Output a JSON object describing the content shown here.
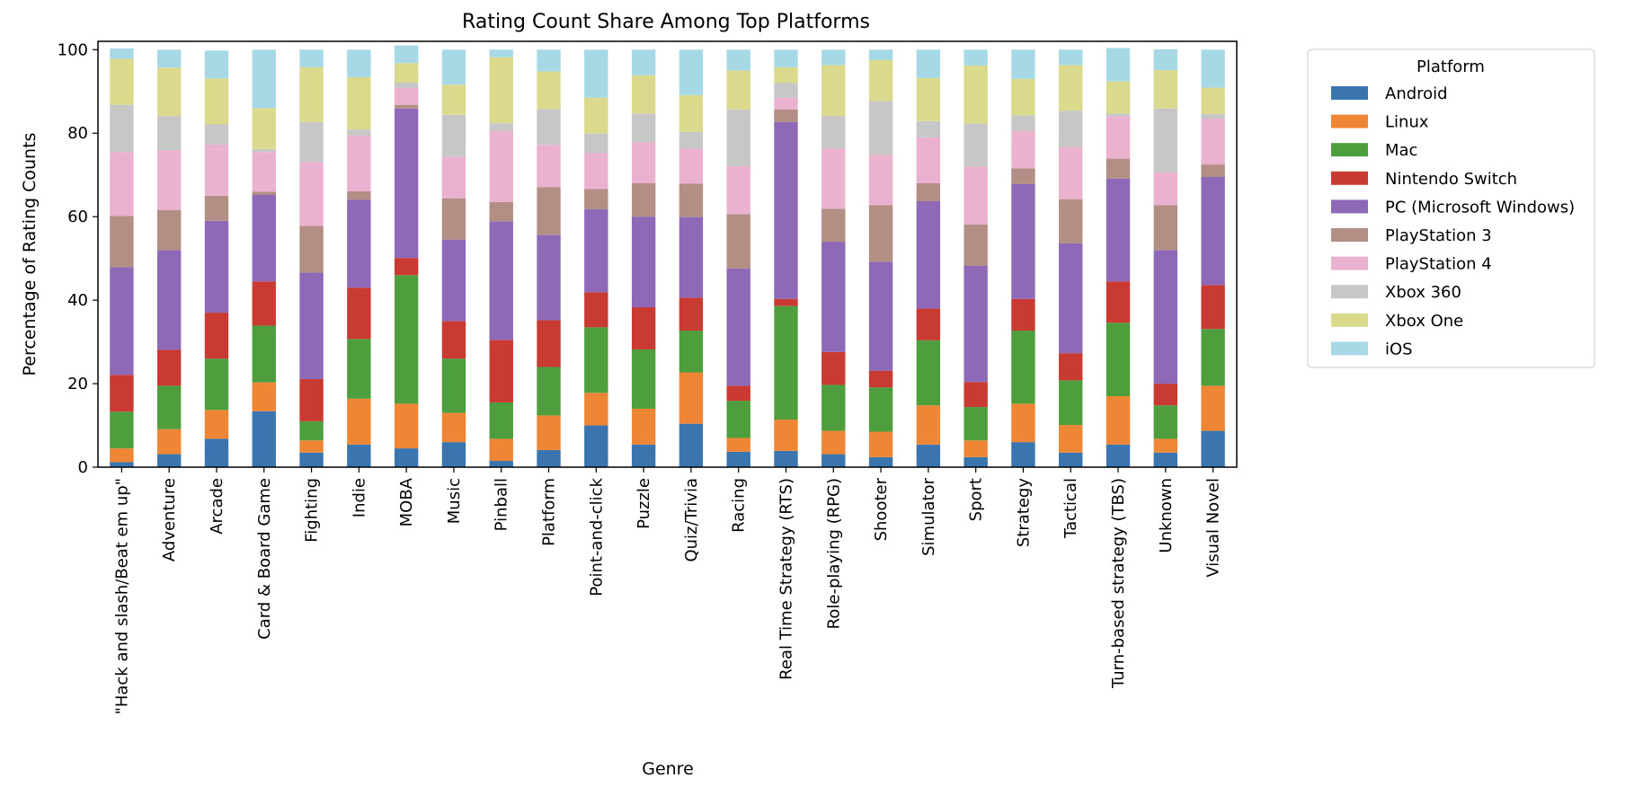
{
  "chart_data": {
    "type": "bar",
    "stacked": true,
    "title": "Rating Count Share Among Top Platforms",
    "xlabel": "Genre",
    "ylabel": "Percentage of Rating Counts",
    "ylim": [
      0,
      100
    ],
    "yticks": [
      0,
      20,
      40,
      60,
      80,
      100
    ],
    "grid": false,
    "legend": {
      "title": "Platform",
      "placement": "upper-right-outside"
    },
    "categories": [
      "\"Hack and slash/Beat em up\"",
      "Adventure",
      "Arcade",
      "Card & Board Game",
      "Fighting",
      "Indie",
      "MOBA",
      "Music",
      "Pinball",
      "Platform",
      "Point-and-click",
      "Puzzle",
      "Quiz/Trivia",
      "Racing",
      "Real Time Strategy (RTS)",
      "Role-playing (RPG)",
      "Shooter",
      "Simulator",
      "Sport",
      "Strategy",
      "Tactical",
      "Turn-based strategy (TBS)",
      "Unknown",
      "Visual Novel"
    ],
    "series": [
      {
        "name": "Android",
        "color": "#3a75b0",
        "values": [
          1.2,
          3.1,
          6.8,
          13.4,
          3.5,
          5.4,
          4.5,
          6.0,
          1.5,
          4.1,
          10.0,
          5.4,
          10.4,
          3.7,
          3.9,
          3.1,
          2.4,
          5.4,
          2.4,
          6.0,
          3.5,
          5.4,
          3.5,
          8.7
        ]
      },
      {
        "name": "Linux",
        "color": "#ef8636",
        "values": [
          3.3,
          6.0,
          6.9,
          6.9,
          2.9,
          11.0,
          10.7,
          7.0,
          5.3,
          8.3,
          7.8,
          8.6,
          12.3,
          3.3,
          7.5,
          5.6,
          6.1,
          9.4,
          4.0,
          9.2,
          6.6,
          11.6,
          3.3,
          10.8
        ]
      },
      {
        "name": "Mac",
        "color": "#4e9e3e",
        "values": [
          8.8,
          10.4,
          12.3,
          13.6,
          4.6,
          14.3,
          30.8,
          13.0,
          8.7,
          11.6,
          15.7,
          14.2,
          10.0,
          8.9,
          27.2,
          11.0,
          10.6,
          15.6,
          8.0,
          17.5,
          10.7,
          17.6,
          8.0,
          13.6
        ]
      },
      {
        "name": "Nintendo Switch",
        "color": "#c83a32",
        "values": [
          8.8,
          8.6,
          11.0,
          10.6,
          10.1,
          12.3,
          4.1,
          9.0,
          15.0,
          11.2,
          8.4,
          10.1,
          7.9,
          3.6,
          1.7,
          7.9,
          4.0,
          7.6,
          6.0,
          7.6,
          6.5,
          9.9,
          5.2,
          10.5
        ]
      },
      {
        "name": "PC (Microsoft Windows)",
        "color": "#8d69b8",
        "values": [
          25.8,
          23.9,
          22.0,
          20.7,
          25.5,
          21.1,
          35.8,
          19.5,
          28.4,
          20.4,
          19.9,
          21.7,
          19.3,
          28.1,
          42.4,
          26.4,
          26.1,
          25.7,
          27.8,
          27.5,
          26.3,
          24.6,
          32.0,
          25.9
        ]
      },
      {
        "name": "PlayStation 3",
        "color": "#b38e85",
        "values": [
          12.3,
          9.6,
          6.0,
          0.8,
          11.2,
          2.0,
          0.9,
          9.9,
          4.6,
          11.5,
          4.8,
          8.0,
          8.0,
          13.0,
          3.0,
          7.9,
          13.6,
          4.3,
          9.9,
          3.8,
          10.6,
          4.8,
          10.8,
          3.0
        ]
      },
      {
        "name": "PlayStation 4",
        "color": "#eab2cf",
        "values": [
          15.3,
          14.3,
          12.3,
          9.5,
          15.3,
          13.4,
          4.1,
          10.0,
          17.1,
          10.1,
          8.6,
          9.8,
          8.4,
          11.5,
          2.8,
          14.4,
          12.0,
          11.0,
          13.9,
          8.9,
          12.5,
          10.1,
          7.8,
          11.0
        ]
      },
      {
        "name": "Xbox 360",
        "color": "#c7c7c7",
        "values": [
          11.3,
          8.2,
          4.8,
          0.7,
          9.6,
          1.4,
          1.2,
          10.0,
          1.8,
          8.6,
          4.7,
          6.9,
          4.0,
          13.6,
          3.5,
          7.8,
          12.9,
          3.9,
          10.3,
          3.8,
          8.7,
          0.7,
          15.3,
          1.1
        ]
      },
      {
        "name": "Xbox One",
        "color": "#dbd98b",
        "values": [
          11.0,
          11.6,
          11.0,
          9.8,
          13.1,
          12.5,
          4.7,
          7.2,
          15.8,
          9.0,
          8.6,
          9.2,
          8.8,
          9.3,
          3.8,
          12.2,
          9.8,
          10.3,
          13.9,
          8.7,
          10.9,
          7.7,
          9.2,
          6.3
        ]
      },
      {
        "name": "iOS",
        "color": "#a6d9e5",
        "values": [
          2.5,
          4.3,
          6.7,
          14.0,
          4.2,
          6.6,
          4.2,
          8.4,
          1.8,
          5.2,
          11.5,
          6.1,
          10.9,
          5.0,
          4.2,
          3.7,
          2.5,
          6.8,
          3.8,
          7.0,
          3.7,
          8.0,
          5.0,
          9.1
        ]
      }
    ]
  }
}
